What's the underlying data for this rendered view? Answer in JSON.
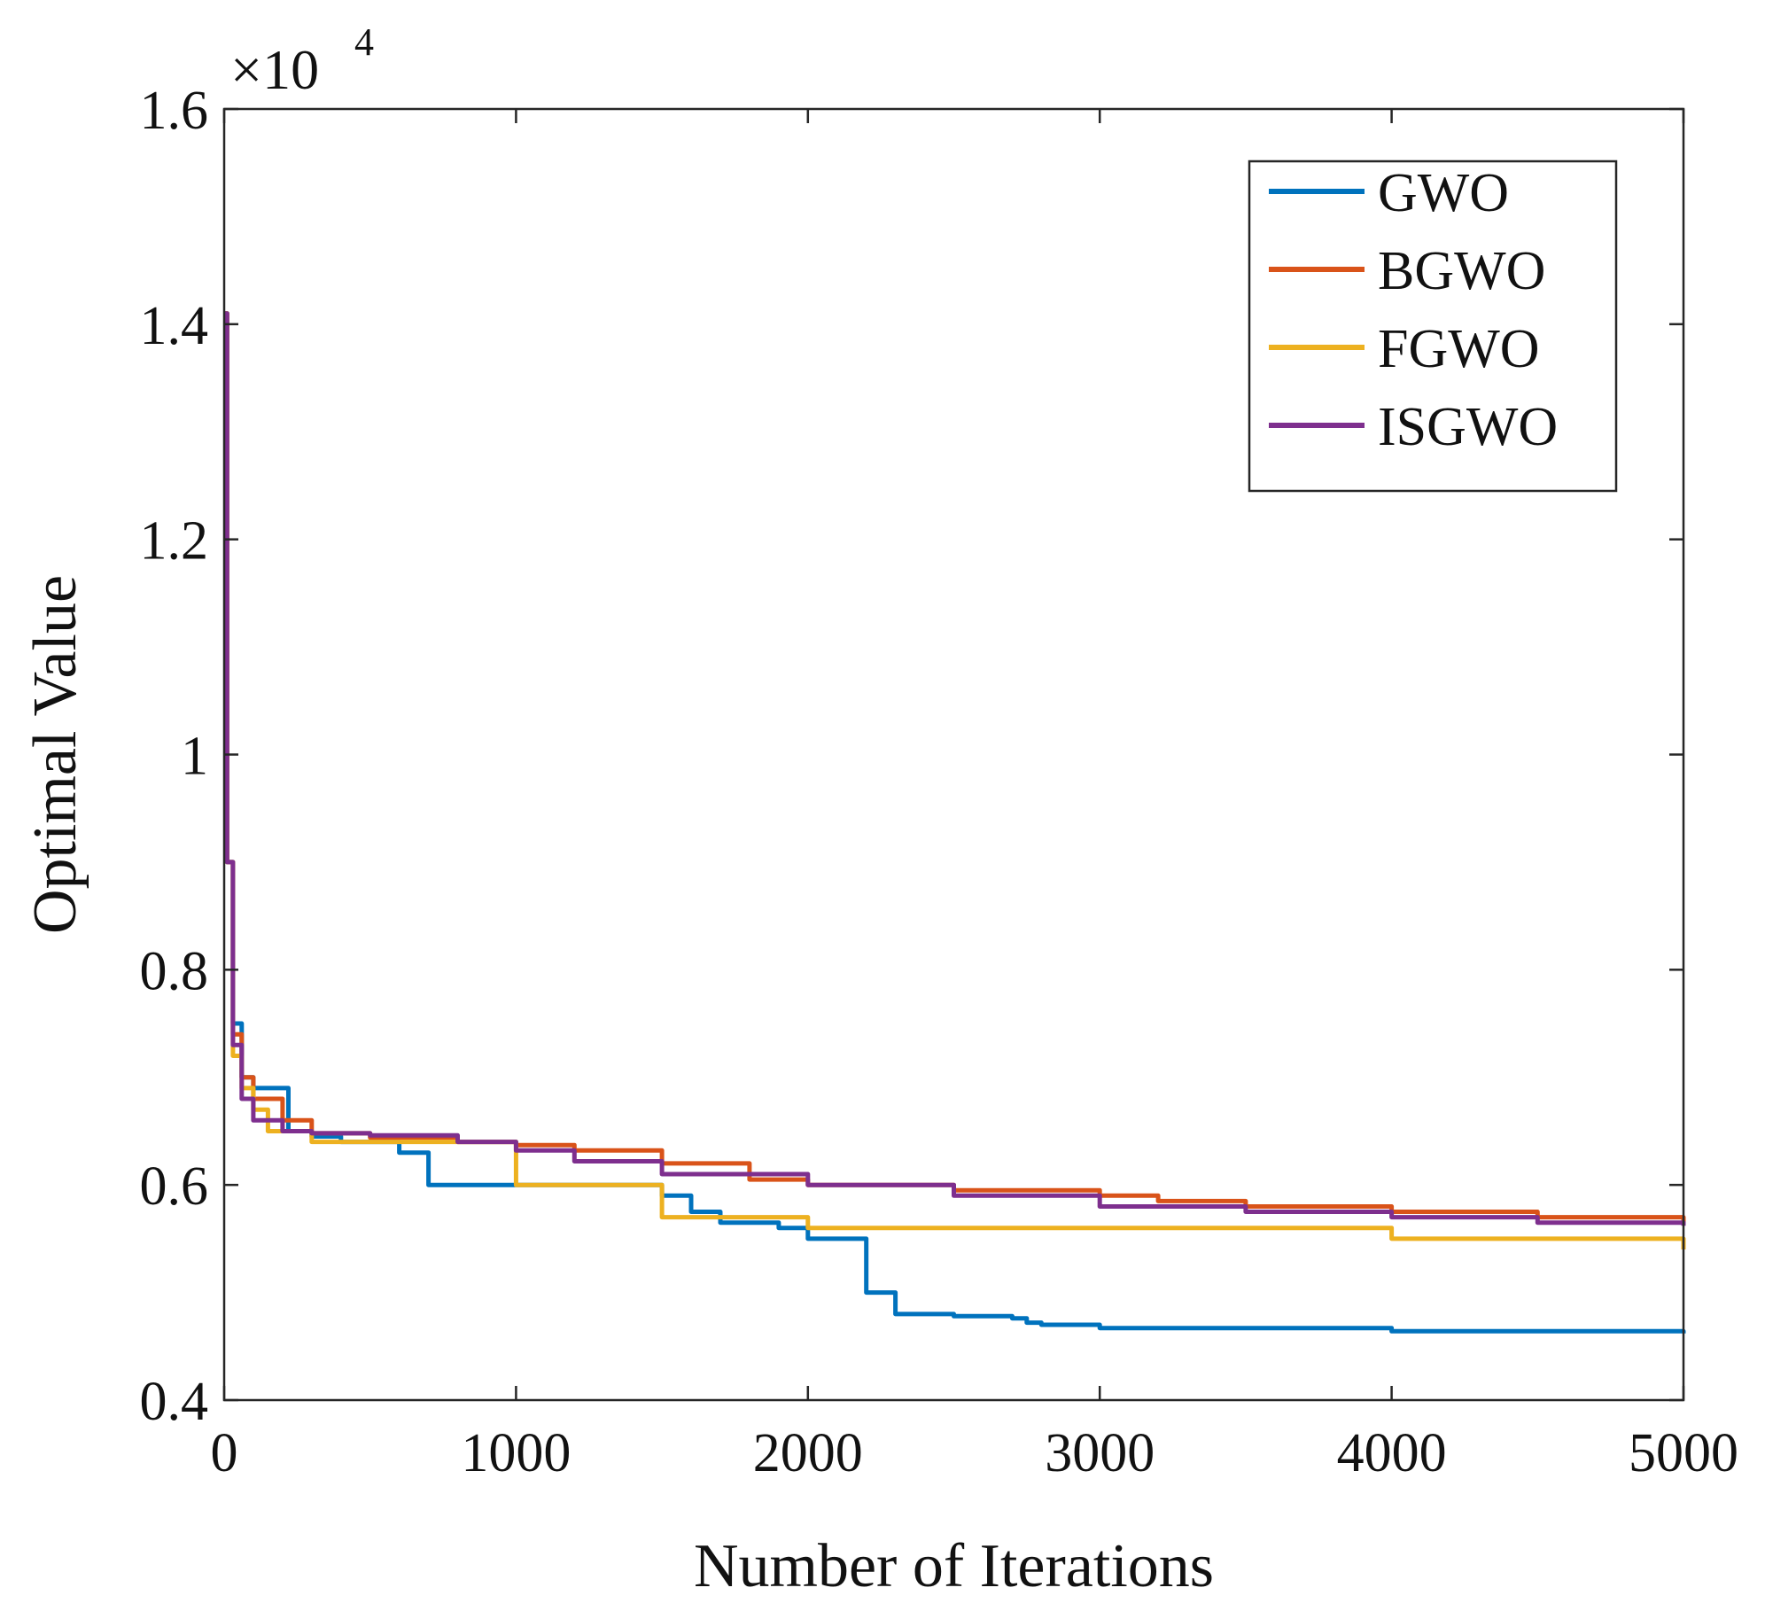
{
  "chart_data": {
    "type": "line",
    "title": "",
    "xlabel": "Number of Iterations",
    "ylabel": "Optimal Value",
    "y_scale_label": "×10",
    "y_scale_exponent": "4",
    "xlim": [
      0,
      5000
    ],
    "ylim": [
      0.4,
      1.6
    ],
    "xticks": [
      0,
      1000,
      2000,
      3000,
      4000,
      5000
    ],
    "xtick_labels": [
      "0",
      "1000",
      "2000",
      "3000",
      "4000",
      "5000"
    ],
    "yticks": [
      0.4,
      0.6,
      0.8,
      1.0,
      1.2,
      1.4,
      1.6
    ],
    "ytick_labels": [
      "0.4",
      "0.6",
      "0.8",
      "1",
      "1.2",
      "1.4",
      "1.6"
    ],
    "grid": false,
    "legend_position": "top-right",
    "series": [
      {
        "name": "GWO",
        "color": "#0072BD",
        "x": [
          0,
          10,
          30,
          60,
          100,
          200,
          220,
          300,
          400,
          600,
          700,
          1500,
          1600,
          1700,
          1900,
          2000,
          2200,
          2300,
          2500,
          2700,
          2750,
          2800,
          3000,
          4000,
          5000
        ],
        "y": [
          1.41,
          0.9,
          0.75,
          0.7,
          0.69,
          0.69,
          0.65,
          0.645,
          0.64,
          0.63,
          0.6,
          0.59,
          0.575,
          0.565,
          0.56,
          0.55,
          0.5,
          0.48,
          0.478,
          0.476,
          0.472,
          0.47,
          0.467,
          0.464,
          0.462
        ]
      },
      {
        "name": "BGWO",
        "color": "#D95319",
        "x": [
          0,
          10,
          30,
          60,
          100,
          200,
          300,
          500,
          800,
          1000,
          1200,
          1500,
          1800,
          2000,
          2500,
          3000,
          3200,
          3500,
          4000,
          4500,
          5000
        ],
        "y": [
          1.41,
          0.9,
          0.74,
          0.7,
          0.68,
          0.66,
          0.648,
          0.644,
          0.64,
          0.637,
          0.632,
          0.62,
          0.605,
          0.6,
          0.595,
          0.59,
          0.585,
          0.58,
          0.575,
          0.57,
          0.565
        ]
      },
      {
        "name": "FGWO",
        "color": "#EDB120",
        "x": [
          0,
          10,
          30,
          60,
          100,
          150,
          300,
          1000,
          1500,
          2000,
          3000,
          4000,
          5000
        ],
        "y": [
          1.41,
          0.9,
          0.72,
          0.69,
          0.67,
          0.65,
          0.64,
          0.6,
          0.57,
          0.56,
          0.56,
          0.55,
          0.54
        ]
      },
      {
        "name": "ISGWO",
        "color": "#7E2F8E",
        "x": [
          0,
          10,
          30,
          60,
          100,
          200,
          300,
          500,
          800,
          1000,
          1200,
          1500,
          2000,
          2500,
          3000,
          3500,
          4000,
          4500,
          5000
        ],
        "y": [
          1.41,
          0.9,
          0.73,
          0.68,
          0.66,
          0.65,
          0.648,
          0.646,
          0.64,
          0.632,
          0.622,
          0.61,
          0.6,
          0.59,
          0.58,
          0.575,
          0.57,
          0.565,
          0.562
        ]
      }
    ]
  }
}
